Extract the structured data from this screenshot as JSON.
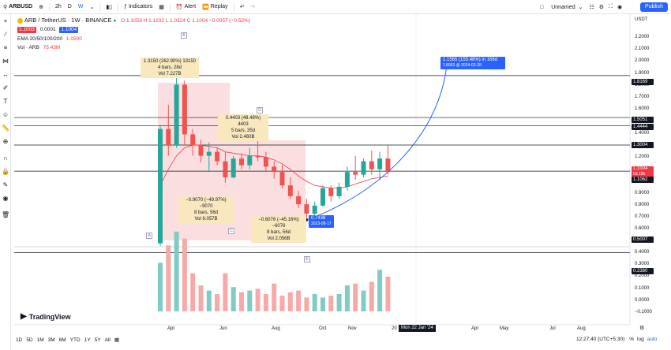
{
  "header": {
    "symbol": "ARBUSD",
    "interval": "2h",
    "interval2": "D",
    "interval3": "W",
    "indicators": "Indicators",
    "alert": "Alert",
    "replay": "Replay",
    "unnamed": "Unnamed",
    "publish": "Publish"
  },
  "legend": {
    "title": "ARB / TetherUS · 1W · BINANCE",
    "ohlc": "O 1.1059 H 1.1232 L 1.0324 C 1.1004 −0.0057 (−0.52%)",
    "sell_price": "1.1003",
    "spread": "0.0001",
    "buy_price": "1.1004",
    "ema_label": "EMA 20/50/100/200",
    "ema_value": "1.0500",
    "vol_label": "Vol · ARB",
    "vol_value": "75.43M"
  },
  "notes": {
    "n1_l1": "1.3150 (262.90%) 13150",
    "n1_l2": "4 bars, 28d",
    "n1_l3": "Vol 7.227B",
    "n2_l1": "0.4403 (48.48%) 4403",
    "n2_l2": "5 bars, 35d",
    "n2_l3": "Vol 2.460B",
    "n3_l1": "−0.9070 (−49.97%) −9070",
    "n3_l2": "8 bars, 56d",
    "n3_l3": "Vol 6.057B",
    "n4_l1": "−0.6076 (−45.16%) −6076",
    "n4_l2": "8 bars, 56d",
    "n4_l3": "Vol 2.056B",
    "target_l1": "1.1565 (155.48%) in 168d",
    "target_l2": "1.8953 @ 2024-02-28",
    "low_l1": "0.7438",
    "low_l2": "2023-08-17"
  },
  "markers": {
    "a": "A",
    "b": "B",
    "c": "C",
    "d": "D",
    "e": "E"
  },
  "price_axis": {
    "currency": "USDT",
    "ticks": [
      "2.2000",
      "2.1000",
      "2.0000",
      "1.9000",
      "1.8000",
      "1.7000",
      "1.6000",
      "1.5000",
      "1.4000",
      "1.3000",
      "1.2000",
      "1.1000",
      "1.0000",
      "0.9000",
      "0.8000",
      "0.7000",
      "0.6000"
    ],
    "tag_1": "1.8169",
    "tag_2": "1.5051",
    "tag_3": "1.4444",
    "tag_4": "1.3004",
    "tag_5": "1.1004",
    "tag_5b": "6d 18h",
    "tag_6": "1.1062",
    "tag_7": "0.5007"
  },
  "volume_axis": {
    "ticks": [
      "0.4000",
      "0.3000",
      "0.2000",
      "0.1000",
      "0.0000",
      "−0.1000"
    ],
    "tag": "0.2380"
  },
  "time_axis": {
    "labels": [
      "Apr",
      "Jun",
      "Aug",
      "Oct",
      "Nov",
      "20",
      "Apr",
      "May",
      "Jul",
      "Aug"
    ],
    "cursor_label": "Mon 22 Jan '24"
  },
  "bottom": {
    "ranges": [
      "1D",
      "5D",
      "1M",
      "3M",
      "6M",
      "YTD",
      "1Y",
      "5Y",
      "All"
    ],
    "clock": "12:27:40 (UTC+5:30)",
    "logo": "TradingView"
  },
  "chart_data": {
    "type": "candlestick",
    "ylim": [
      0.55,
      2.25
    ],
    "candles": [
      {
        "o": 0.57,
        "h": 1.45,
        "l": 0.55,
        "c": 1.42
      },
      {
        "o": 1.42,
        "h": 1.6,
        "l": 1.22,
        "c": 1.3
      },
      {
        "o": 1.3,
        "h": 1.82,
        "l": 1.28,
        "c": 1.75
      },
      {
        "o": 1.75,
        "h": 1.78,
        "l": 1.3,
        "c": 1.38
      },
      {
        "o": 1.38,
        "h": 1.42,
        "l": 1.22,
        "c": 1.3
      },
      {
        "o": 1.3,
        "h": 1.34,
        "l": 1.17,
        "c": 1.22
      },
      {
        "o": 1.22,
        "h": 1.32,
        "l": 1.1,
        "c": 1.25
      },
      {
        "o": 1.25,
        "h": 1.28,
        "l": 1.15,
        "c": 1.18
      },
      {
        "o": 1.18,
        "h": 1.25,
        "l": 1.02,
        "c": 1.06
      },
      {
        "o": 1.06,
        "h": 1.22,
        "l": 1.05,
        "c": 1.2
      },
      {
        "o": 1.2,
        "h": 1.24,
        "l": 1.12,
        "c": 1.15
      },
      {
        "o": 1.15,
        "h": 1.28,
        "l": 1.12,
        "c": 1.22
      },
      {
        "o": 1.22,
        "h": 1.45,
        "l": 1.18,
        "c": 1.21
      },
      {
        "o": 1.21,
        "h": 1.25,
        "l": 1.1,
        "c": 1.14
      },
      {
        "o": 1.14,
        "h": 1.18,
        "l": 1.05,
        "c": 1.1
      },
      {
        "o": 1.1,
        "h": 1.15,
        "l": 0.98,
        "c": 1.0
      },
      {
        "o": 1.0,
        "h": 1.06,
        "l": 0.9,
        "c": 0.92
      },
      {
        "o": 0.92,
        "h": 0.96,
        "l": 0.83,
        "c": 0.86
      },
      {
        "o": 0.86,
        "h": 0.9,
        "l": 0.75,
        "c": 0.79
      },
      {
        "o": 0.79,
        "h": 0.88,
        "l": 0.77,
        "c": 0.85
      },
      {
        "o": 0.85,
        "h": 1.0,
        "l": 0.84,
        "c": 0.98
      },
      {
        "o": 0.98,
        "h": 1.0,
        "l": 0.88,
        "c": 0.92
      },
      {
        "o": 0.92,
        "h": 1.02,
        "l": 0.9,
        "c": 0.99
      },
      {
        "o": 0.99,
        "h": 1.14,
        "l": 0.96,
        "c": 1.1
      },
      {
        "o": 1.1,
        "h": 1.22,
        "l": 1.04,
        "c": 1.08
      },
      {
        "o": 1.08,
        "h": 1.2,
        "l": 1.06,
        "c": 1.18
      },
      {
        "o": 1.18,
        "h": 1.26,
        "l": 1.08,
        "c": 1.12
      },
      {
        "o": 1.12,
        "h": 1.25,
        "l": 1.04,
        "c": 1.2
      },
      {
        "o": 1.2,
        "h": 1.3,
        "l": 1.08,
        "c": 1.1
      }
    ],
    "ema": [
      1.0,
      1.12,
      1.22,
      1.28,
      1.3,
      1.3,
      1.29,
      1.28,
      1.25,
      1.24,
      1.23,
      1.22,
      1.22,
      1.21,
      1.19,
      1.16,
      1.12,
      1.07,
      1.03,
      1.0,
      0.99,
      0.98,
      0.98,
      0.99,
      1.01,
      1.03,
      1.05,
      1.06,
      1.07
    ],
    "volume": [
      0.28,
      0.38,
      0.46,
      0.42,
      0.22,
      0.15,
      0.12,
      0.1,
      0.22,
      0.14,
      0.11,
      0.12,
      0.13,
      0.1,
      0.16,
      0.09,
      0.11,
      0.12,
      0.08,
      0.1,
      0.08,
      0.09,
      0.1,
      0.15,
      0.16,
      0.12,
      0.17,
      0.24,
      0.2
    ]
  }
}
